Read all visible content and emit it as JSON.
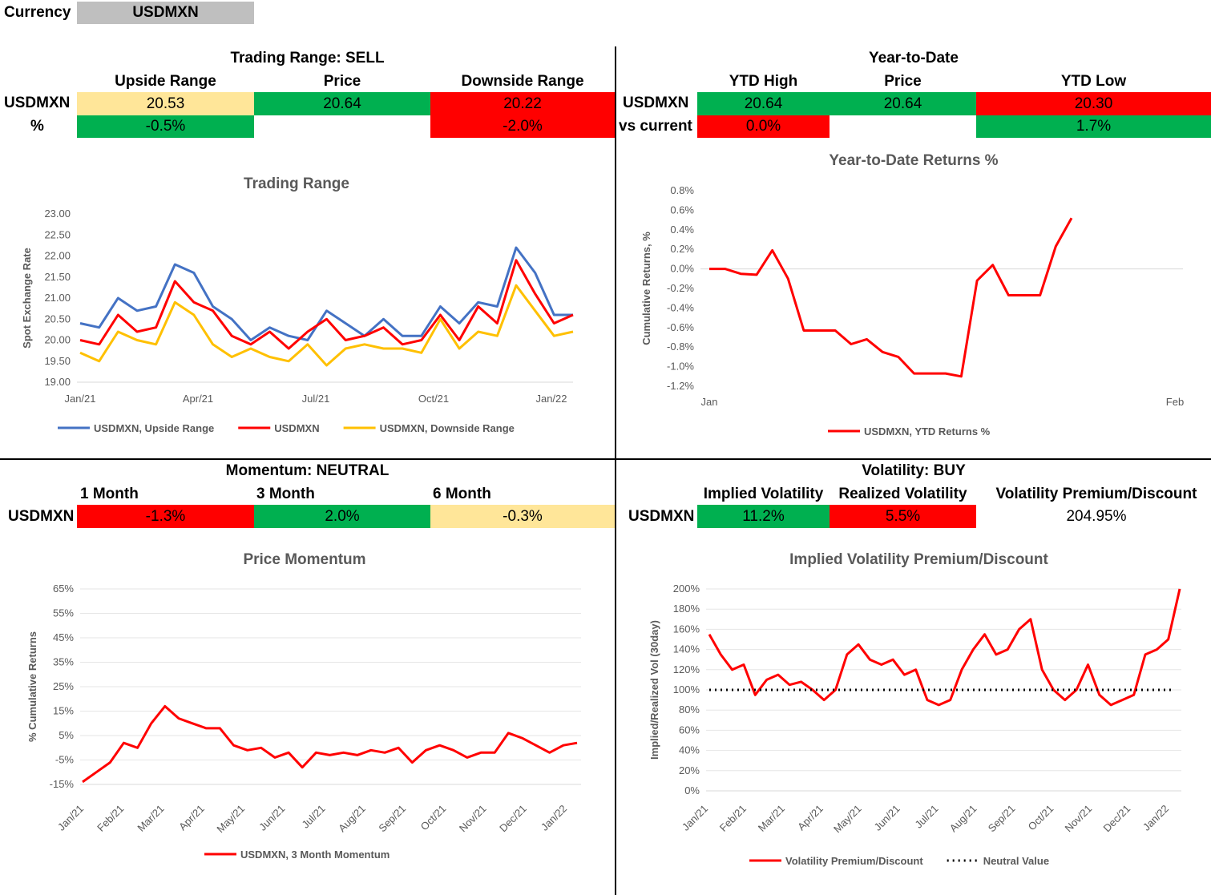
{
  "currency": {
    "label": "Currency",
    "value": "USDMXN"
  },
  "trading_range": {
    "title": "Trading Range: SELL",
    "cols": [
      "Upside Range",
      "Price",
      "Downside Range"
    ],
    "row1_label": "USDMXN",
    "row1": [
      "20.53",
      "20.64",
      "20.22"
    ],
    "row2_label": "%",
    "row2": [
      "-0.5%",
      "",
      "-2.0%"
    ]
  },
  "ytd": {
    "title": "Year-to-Date",
    "cols": [
      "YTD High",
      "Price",
      "YTD Low"
    ],
    "row1_label": "USDMXN",
    "row1": [
      "20.64",
      "20.64",
      "20.30"
    ],
    "row2_label": "vs current",
    "row2": [
      "0.0%",
      "",
      "1.7%"
    ]
  },
  "momentum": {
    "title": "Momentum: NEUTRAL",
    "cols": [
      "1 Month",
      "3 Month",
      "6 Month"
    ],
    "row_label": "USDMXN",
    "row": [
      "-1.3%",
      "2.0%",
      "-0.3%"
    ]
  },
  "volatility": {
    "title": "Volatility: BUY",
    "cols": [
      "Implied Volatility",
      "Realized Volatility",
      "Volatility Premium/Discount"
    ],
    "row_label": "USDMXN",
    "row": [
      "11.2%",
      "5.5%",
      "204.95%"
    ]
  },
  "colors": {
    "green": "#00b050",
    "red": "#ff0000",
    "yellow": "#ffe699",
    "blue": "#4472c4",
    "gold": "#ffc000"
  },
  "chart_data": [
    {
      "id": "trading_range",
      "type": "line",
      "title": "Trading Range",
      "xlabel": "",
      "ylabel": "Spot Exchange Rate",
      "ylim": [
        19.0,
        23.0
      ],
      "yticks": [
        "19.00",
        "19.50",
        "20.00",
        "20.50",
        "21.00",
        "21.50",
        "22.00",
        "22.50",
        "23.00"
      ],
      "xticks": [
        "Jan/21",
        "Apr/21",
        "Jul/21",
        "Oct/21",
        "Jan/22"
      ],
      "x": [
        0,
        1,
        1.5,
        2,
        2.5,
        3,
        3.5,
        4,
        4.5,
        5,
        5.5,
        6,
        6.5,
        7,
        7.5,
        8,
        8.5,
        9,
        9.5,
        10,
        10.5,
        11,
        11.5,
        12,
        12.5,
        13,
        13.5
      ],
      "series": [
        {
          "name": "USDMXN, Upside Range",
          "color": "#4472c4",
          "values": [
            20.4,
            20.3,
            21.0,
            20.7,
            20.8,
            21.8,
            21.6,
            20.8,
            20.5,
            20.0,
            20.3,
            20.1,
            20.0,
            20.7,
            20.4,
            20.1,
            20.5,
            20.1,
            20.1,
            20.8,
            20.4,
            20.9,
            20.8,
            22.2,
            21.6,
            20.6,
            20.6
          ]
        },
        {
          "name": "USDMXN",
          "color": "#ff0000",
          "values": [
            20.0,
            19.9,
            20.6,
            20.2,
            20.3,
            21.4,
            20.9,
            20.7,
            20.1,
            19.9,
            20.2,
            19.8,
            20.2,
            20.5,
            20.0,
            20.1,
            20.3,
            19.9,
            20.0,
            20.6,
            20.0,
            20.8,
            20.4,
            21.9,
            21.1,
            20.4,
            20.6
          ]
        },
        {
          "name": "USDMXN, Downside Range",
          "color": "#ffc000",
          "values": [
            19.7,
            19.5,
            20.2,
            20.0,
            19.9,
            20.9,
            20.6,
            19.9,
            19.6,
            19.8,
            19.6,
            19.5,
            19.9,
            19.4,
            19.8,
            19.9,
            19.8,
            19.8,
            19.7,
            20.5,
            19.8,
            20.2,
            20.1,
            21.3,
            20.7,
            20.1,
            20.2
          ]
        }
      ]
    },
    {
      "id": "ytd_returns",
      "type": "line",
      "title": "Year-to-Date Returns %",
      "xlabel": "",
      "ylabel": "Cumulative Returns, %",
      "ylim": [
        -1.2,
        0.8
      ],
      "yticks": [
        "-1.2%",
        "-1.0%",
        "-0.8%",
        "-0.6%",
        "-0.4%",
        "-0.2%",
        "0.0%",
        "0.2%",
        "0.4%",
        "0.6%",
        "0.8%"
      ],
      "xticks": [
        "Jan",
        "Feb"
      ],
      "series": [
        {
          "name": "USDMXN, YTD Returns %",
          "color": "#ff0000",
          "values": [
            0.0,
            0.0,
            -0.05,
            -0.06,
            0.19,
            -0.1,
            -0.63,
            -0.63,
            -0.63,
            -0.77,
            -0.72,
            -0.85,
            -0.9,
            -1.07,
            -1.07,
            -1.07,
            -1.1,
            -0.12,
            0.04,
            -0.27,
            -0.27,
            -0.27,
            0.23,
            0.52
          ]
        }
      ]
    },
    {
      "id": "price_momentum",
      "type": "line",
      "title": "Price Momentum",
      "xlabel": "",
      "ylabel": "% Cumulative Returns",
      "ylim": [
        -15,
        65
      ],
      "yticks": [
        "-15%",
        "-5%",
        "5%",
        "15%",
        "25%",
        "35%",
        "45%",
        "55%",
        "65%"
      ],
      "xticks": [
        "Jan/21",
        "Feb/21",
        "Mar/21",
        "Apr/21",
        "May/21",
        "Jun/21",
        "Jul/21",
        "Aug/21",
        "Sep/21",
        "Oct/21",
        "Nov/21",
        "Dec/21",
        "Jan/22"
      ],
      "series": [
        {
          "name": "USDMXN, 3 Month Momentum",
          "color": "#ff0000",
          "values": [
            -14,
            -10,
            -6,
            2,
            0,
            10,
            17,
            12,
            10,
            8,
            8,
            1,
            -1,
            0,
            -4,
            -2,
            -8,
            -2,
            -3,
            -2,
            -3,
            -1,
            -2,
            0,
            -6,
            -1,
            1,
            -1,
            -4,
            -2,
            -2,
            6,
            4,
            1,
            -2,
            1,
            2
          ]
        }
      ]
    },
    {
      "id": "iv_premium",
      "type": "line",
      "title": "Implied Volatility Premium/Discount",
      "xlabel": "",
      "ylabel": "Implied/Realized Vol (30day)",
      "ylim": [
        0,
        200
      ],
      "yticks": [
        "0%",
        "20%",
        "40%",
        "60%",
        "80%",
        "100%",
        "120%",
        "140%",
        "160%",
        "180%",
        "200%"
      ],
      "xticks": [
        "Jan/21",
        "Feb/21",
        "Mar/21",
        "Apr/21",
        "May/21",
        "Jun/21",
        "Jul/21",
        "Aug/21",
        "Sep/21",
        "Oct/21",
        "Nov/21",
        "Dec/21",
        "Jan/22"
      ],
      "series": [
        {
          "name": "Volatility Premium/Discount",
          "color": "#ff0000",
          "values": [
            155,
            135,
            120,
            125,
            95,
            110,
            115,
            105,
            108,
            100,
            90,
            100,
            135,
            145,
            130,
            125,
            130,
            115,
            120,
            90,
            85,
            90,
            120,
            140,
            155,
            135,
            140,
            160,
            170,
            120,
            100,
            90,
            100,
            125,
            95,
            85,
            90,
            95,
            135,
            140,
            150,
            200
          ]
        },
        {
          "name": "Neutral Value",
          "color": "#000000",
          "dashed": true,
          "values": [
            100,
            100
          ]
        }
      ]
    }
  ]
}
